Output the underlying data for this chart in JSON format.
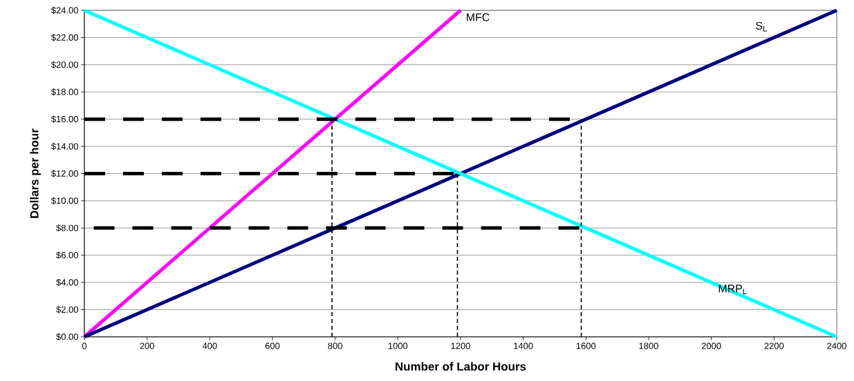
{
  "chart_data": {
    "type": "line",
    "xlabel": "Number of Labor Hours",
    "ylabel": "Dollars per hour",
    "xlim": [
      0,
      2400
    ],
    "ylim": [
      0,
      24
    ],
    "xticks": [
      0,
      200,
      400,
      600,
      800,
      1000,
      1200,
      1400,
      1600,
      1800,
      2000,
      2200,
      2400
    ],
    "yticks": [
      {
        "value": 0,
        "label": "$0.00"
      },
      {
        "value": 2,
        "label": "$2.00"
      },
      {
        "value": 4,
        "label": "$4.00"
      },
      {
        "value": 6,
        "label": "$6.00"
      },
      {
        "value": 8,
        "label": "$8.00"
      },
      {
        "value": 10,
        "label": "$10.00"
      },
      {
        "value": 12,
        "label": "$12.00"
      },
      {
        "value": 14,
        "label": "$14.00"
      },
      {
        "value": 16,
        "label": "$16.00"
      },
      {
        "value": 18,
        "label": "$18.00"
      },
      {
        "value": 20,
        "label": "$20.00"
      },
      {
        "value": 22,
        "label": "$22.00"
      },
      {
        "value": 24,
        "label": "$24.00"
      }
    ],
    "grid": "y",
    "legend": false,
    "marker": "none",
    "line_style": "solid",
    "series": [
      {
        "name": "MFC",
        "color": "#ff00ff",
        "x": [
          0,
          1200
        ],
        "values": [
          0,
          24
        ]
      },
      {
        "name": "S$_{L}$",
        "color": "#000080",
        "x": [
          0,
          2400
        ],
        "values": [
          0,
          24
        ]
      },
      {
        "name": "MRP$_{L}$",
        "color": "#00ffff",
        "x": [
          0,
          2400
        ],
        "values": [
          24,
          0
        ]
      },
      {
        "color": "#000000",
        "line_style": "dashed",
        "x": [
          0,
          1550
        ],
        "values": [
          16,
          16
        ]
      },
      {
        "color": "#000000",
        "line_style": "dashed",
        "x": [
          0,
          1190
        ],
        "values": [
          12,
          12
        ]
      },
      {
        "color": "#000000",
        "line_style": "dashed",
        "x": [
          30,
          1590
        ],
        "values": [
          8,
          8
        ]
      },
      {
        "color": "#000000",
        "line_style": "dashed",
        "x": [
          790,
          790
        ],
        "values": [
          0,
          16
        ]
      },
      {
        "color": "#000000",
        "line_style": "dashed",
        "x": [
          1190,
          1190
        ],
        "values": [
          0,
          12
        ]
      },
      {
        "color": "#000000",
        "line_style": "dashed",
        "x": [
          1585,
          1585
        ],
        "values": [
          0,
          16
        ]
      }
    ]
  }
}
